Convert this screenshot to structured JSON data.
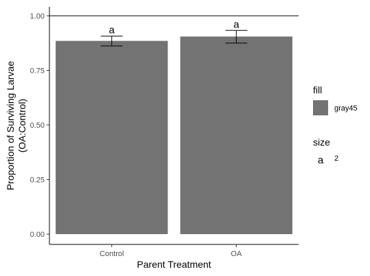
{
  "chart_data": {
    "type": "bar",
    "categories": [
      "Control",
      "OA"
    ],
    "values": [
      0.885,
      0.905
    ],
    "error_low": [
      0.862,
      0.875
    ],
    "error_high": [
      0.907,
      0.933
    ],
    "labels": [
      "a",
      "a"
    ],
    "reference_line": 1.0,
    "xlabel": "Parent Treatment",
    "ylabel_line1": "Proportion of Surviving Larvae",
    "ylabel_line2": "(OA:Control)",
    "ylim": [
      0,
      1.0
    ],
    "yticks": [
      "0.00",
      "0.25",
      "0.50",
      "0.75",
      "1.00"
    ],
    "ytick_values": [
      0,
      0.25,
      0.5,
      0.75,
      1.0
    ],
    "bar_color": "#737373",
    "legend": {
      "fill_title": "fill",
      "fill_label": "gray45",
      "size_title": "size",
      "size_key_glyph": "a",
      "size_label": "2"
    }
  }
}
